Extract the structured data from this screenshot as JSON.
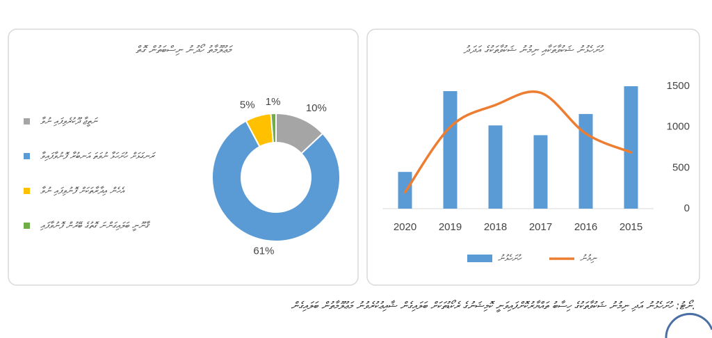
{
  "chart_data": [
    {
      "type": "pie",
      "title": "މަޢުލޫމާތު ހޯދުނު ނިސްބަތުން ގޮތް",
      "categories": [
        "ނަތީޖާ ދޫކުރެވިފައި ނުވާ",
        "ރަނގަޅަށް ހުށަހަޅާ ނުވަތަ އަނބުރާ ފޮނުވާފައިވާ",
        "އެހެން އިދާރާތަކަށް ފޮނުވިފައި ނުވާ",
        "ޤާނޫނީ ބަލައިގަންނަ ގޮތުގެ ބޭރުން ފޮނުވާފައި"
      ],
      "values": [
        10,
        61,
        5,
        1
      ],
      "colors": [
        "#a5a5a5",
        "#5b9bd5",
        "#ffc000",
        "#70ad47"
      ]
    },
    {
      "type": "combo",
      "title": "ހުށަހެޅުނު ޝަކުވާތަކާއި ނިމުނު ޝަކުވާތަކުގެ އަދަދު",
      "categories": [
        "2020",
        "2019",
        "2018",
        "2017",
        "2016",
        "2015"
      ],
      "series": [
        {
          "name": "ހުށަހެޅުނު",
          "type": "bar",
          "color": "#5b9bd5",
          "values": [
            450,
            1440,
            1020,
            900,
            1160,
            1500
          ]
        },
        {
          "name": "ނިމުނު",
          "type": "line",
          "color": "#ed7d31",
          "values": [
            200,
            1000,
            1270,
            1420,
            920,
            690
          ]
        }
      ],
      "ylim": [
        0,
        1500
      ],
      "yticks": [
        0,
        500,
        1000,
        1500
      ],
      "grid": false,
      "legend": "bottom"
    }
  ],
  "footnote": "ނޯޓު: ހުށަހެޅުނު އަދި ނިމުނު ޝަކުވާތަކުގެ ހިސާބު ތައްޔާރުކޮށްފައިވަނީ ކޮމިޝަނުގެ ރެކޯޑުތަކަށް ބަލައިގެން ޝާއިޢުކުރެވުނު މަޢުލޫމާތުން ބަލައިގެން."
}
